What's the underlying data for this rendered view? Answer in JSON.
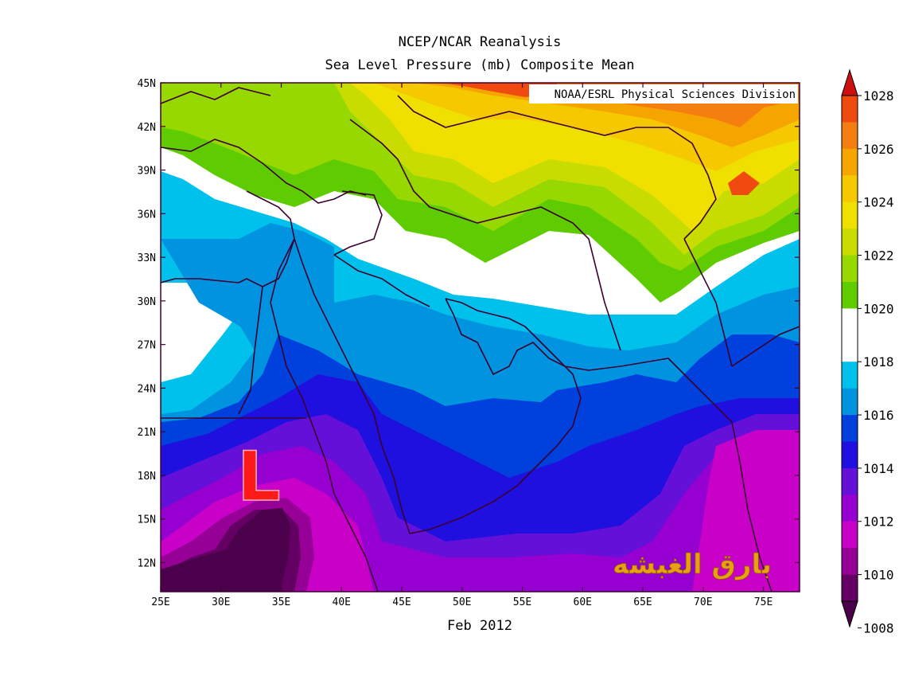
{
  "title": {
    "line1": "NCEP/NCAR Reanalysis",
    "line2": "Sea Level Pressure (mb) Composite Mean"
  },
  "credit": "NOAA/ESRL Physical Sciences Division",
  "period_label": "Feb 2012",
  "watermark": "بارق الغبشه",
  "low_marker": "L",
  "map": {
    "lon_ticks": [
      "25E",
      "30E",
      "35E",
      "40E",
      "45E",
      "50E",
      "55E",
      "60E",
      "65E",
      "70E",
      "75E"
    ],
    "lat_ticks": [
      "45N",
      "42N",
      "39N",
      "36N",
      "33N",
      "30N",
      "27N",
      "24N",
      "21N",
      "18N",
      "15N",
      "12N"
    ],
    "lon_range": [
      25,
      78
    ],
    "lat_range": [
      10,
      45
    ],
    "variable": "Sea Level Pressure (mb)"
  },
  "colorbar": {
    "labels": [
      "1028",
      "1026",
      "1024",
      "1022",
      "1020",
      "1018",
      "1016",
      "1014",
      "1012",
      "1010",
      "1008"
    ],
    "colors": {
      "above_1027": "#cc1010",
      "1026_1027": "#f04a10",
      "1025_1026": "#f57e10",
      "1024_1025": "#f5a400",
      "1023_1024": "#f5c800",
      "1022_1023": "#f0e000",
      "1021_1022": "#c8dc00",
      "1020_1021": "#96d800",
      "1019_1020": "#5ecc00",
      "1018_1019": "#ffffff",
      "1017_1018": "#ffffff",
      "1016_1017": "#00c0ec",
      "1015_1016": "#0094e0",
      "1014_1015": "#0040dc",
      "1013_1014": "#2010e0",
      "1012_1013": "#6410d8",
      "1011_1012": "#9600d0",
      "1010_1011": "#c800c8",
      "1009_1010": "#960096",
      "1008_1009": "#640064",
      "below_1008": "#4a004a"
    }
  }
}
